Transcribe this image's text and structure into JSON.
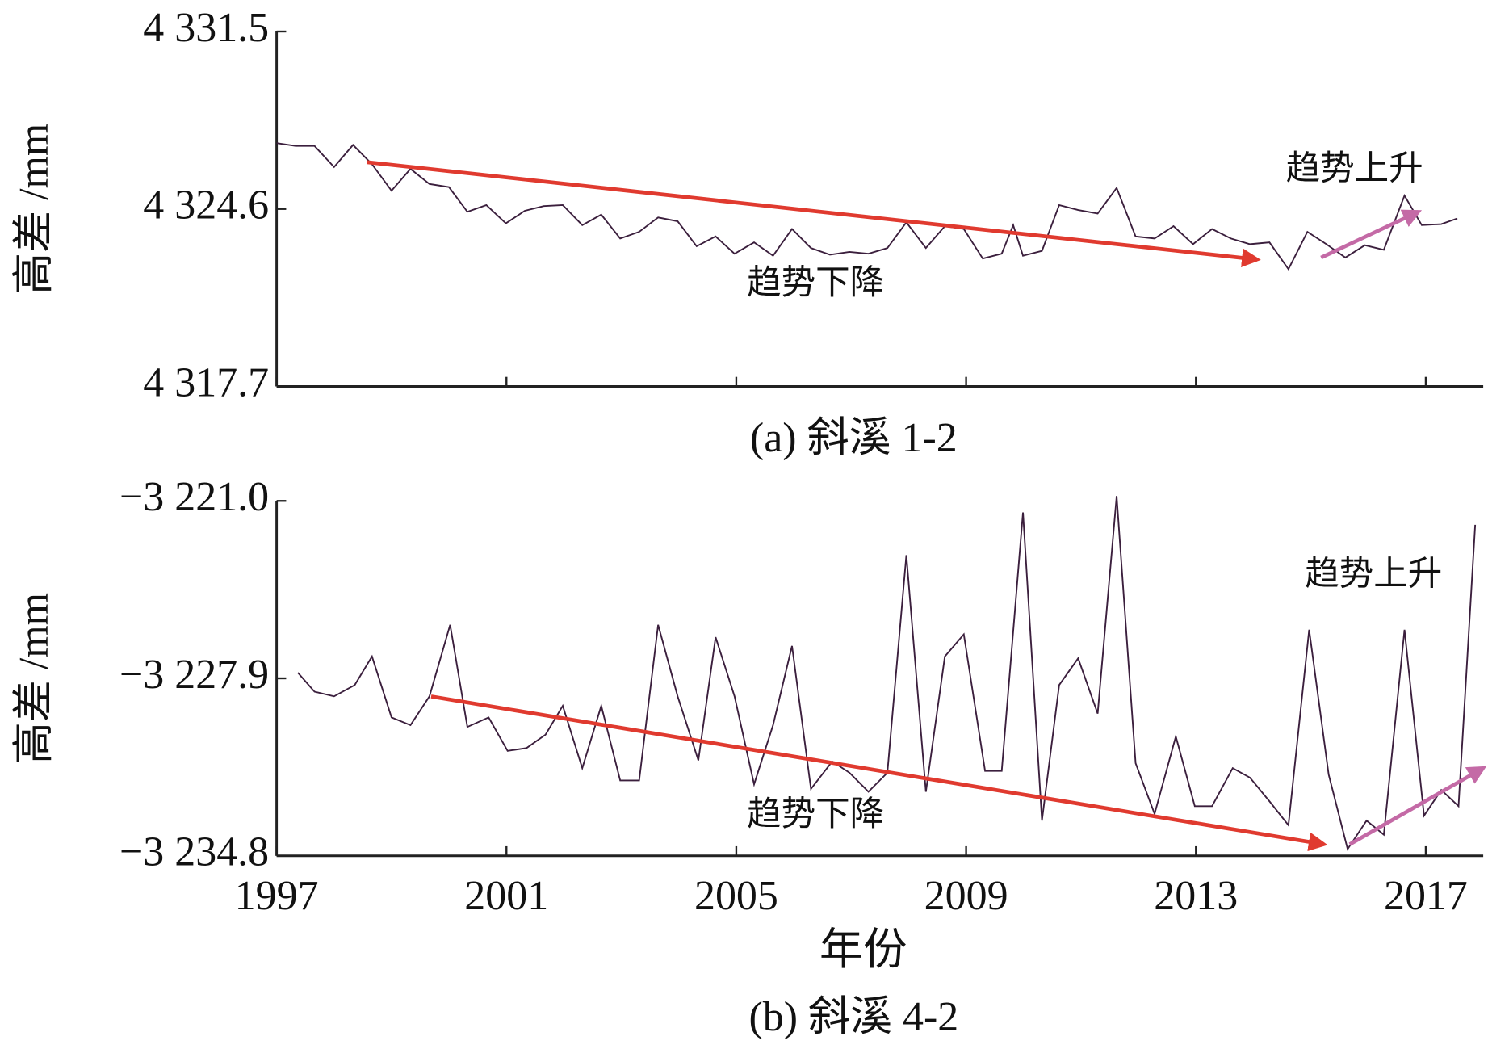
{
  "chart_data": [
    {
      "type": "line",
      "ylabel": "高差 /mm",
      "caption": "(a) 斜溪 1-2",
      "sharex": true,
      "color": "#3b1f3d",
      "annotations": [
        "趋势下降",
        "趋势上升"
      ],
      "xlim": [
        1997,
        2018
      ],
      "ylim": [
        4317.7,
        4331.5
      ],
      "yticks": [
        {
          "value": 4317.7,
          "label": "4 317.7"
        },
        {
          "value": 4324.6,
          "label": "4 324.6"
        },
        {
          "value": 4331.5,
          "label": "4 331.5"
        }
      ],
      "x": [
        1997.0,
        1997.33,
        1997.66,
        1998.0,
        1998.33,
        1998.66,
        1999.0,
        1999.33,
        1999.66,
        2000.0,
        2000.32,
        2000.65,
        2000.99,
        2001.32,
        2001.65,
        2001.98,
        2002.32,
        2002.65,
        2002.98,
        2003.31,
        2003.64,
        2003.98,
        2004.31,
        2004.64,
        2004.97,
        2005.31,
        2005.64,
        2005.97,
        2006.3,
        2006.63,
        2006.97,
        2007.3,
        2007.63,
        2007.96,
        2008.3,
        2008.63,
        2008.96,
        2009.29,
        2009.62,
        2009.82,
        2009.99,
        2010.32,
        2010.62,
        2010.95,
        2011.29,
        2011.62,
        2011.95,
        2012.28,
        2012.61,
        2012.95,
        2013.28,
        2013.61,
        2013.94,
        2014.28,
        2014.61,
        2014.94,
        2015.27,
        2015.6,
        2015.94,
        2016.27,
        2016.63,
        2016.93,
        2017.27,
        2017.55
      ],
      "values": [
        4327.16,
        4327.05,
        4327.05,
        4326.23,
        4327.09,
        4326.34,
        4325.31,
        4326.16,
        4325.57,
        4325.45,
        4324.49,
        4324.75,
        4324.04,
        4324.53,
        4324.71,
        4324.75,
        4323.97,
        4324.38,
        4323.45,
        4323.71,
        4324.27,
        4324.12,
        4323.15,
        4323.53,
        4322.86,
        4323.3,
        4322.78,
        4323.82,
        4323.08,
        4322.82,
        4322.93,
        4322.86,
        4323.08,
        4324.08,
        4323.08,
        4323.93,
        4323.82,
        4322.67,
        4322.86,
        4323.97,
        4322.78,
        4322.97,
        4324.75,
        4324.56,
        4324.42,
        4325.42,
        4323.53,
        4323.45,
        4323.93,
        4323.23,
        4323.82,
        4323.45,
        4323.23,
        4323.3,
        4322.26,
        4323.71,
        4323.23,
        4322.71,
        4323.19,
        4323.01,
        4325.12,
        4323.97,
        4324.01,
        4324.23
      ]
    },
    {
      "type": "line",
      "ylabel": "高差 /mm",
      "caption": "(b) 斜溪 4-2",
      "xlabel": "年份",
      "color": "#3b1f3d",
      "annotations": [
        "趋势下降",
        "趋势上升"
      ],
      "xlim": [
        1997,
        2018
      ],
      "xticks": [
        1997,
        2001,
        2005,
        2009,
        2013,
        2017
      ],
      "ylim": [
        -3234.8,
        -3221.0
      ],
      "yticks": [
        {
          "value": -3234.8,
          "label": "−3 234.8"
        },
        {
          "value": -3227.9,
          "label": "−3 227.9"
        },
        {
          "value": -3221.0,
          "label": "−3 221.0"
        }
      ],
      "x": [
        1997.37,
        1997.66,
        1998.0,
        1998.36,
        1998.66,
        1999.0,
        1999.33,
        1999.66,
        2000.02,
        2000.32,
        2000.69,
        2001.02,
        2001.35,
        2001.68,
        2001.98,
        2002.32,
        2002.65,
        2002.98,
        2003.31,
        2003.64,
        2003.98,
        2004.34,
        2004.64,
        2004.97,
        2005.31,
        2005.64,
        2005.97,
        2006.3,
        2006.67,
        2006.97,
        2007.3,
        2007.63,
        2007.96,
        2008.3,
        2008.63,
        2008.96,
        2009.33,
        2009.62,
        2009.99,
        2010.32,
        2010.62,
        2010.95,
        2011.29,
        2011.62,
        2011.95,
        2012.28,
        2012.65,
        2012.98,
        2013.28,
        2013.64,
        2013.94,
        2014.28,
        2014.61,
        2014.97,
        2015.31,
        2015.64,
        2015.97,
        2016.27,
        2016.63,
        2016.97,
        2017.27,
        2017.57,
        2017.86
      ],
      "values": [
        -3227.68,
        -3228.42,
        -3228.6,
        -3228.16,
        -3227.05,
        -3229.42,
        -3229.72,
        -3228.6,
        -3225.82,
        -3229.79,
        -3229.42,
        -3230.72,
        -3230.61,
        -3230.09,
        -3228.97,
        -3231.39,
        -3228.97,
        -3231.87,
        -3231.87,
        -3225.82,
        -3228.6,
        -3231.09,
        -3226.3,
        -3228.6,
        -3232.02,
        -3229.72,
        -3226.64,
        -3232.2,
        -3231.13,
        -3231.57,
        -3232.31,
        -3231.57,
        -3223.11,
        -3232.31,
        -3227.05,
        -3226.19,
        -3231.5,
        -3231.5,
        -3221.45,
        -3233.43,
        -3228.16,
        -3227.12,
        -3229.27,
        -3220.81,
        -3231.2,
        -3233.17,
        -3230.16,
        -3232.87,
        -3232.87,
        -3231.39,
        -3231.76,
        -3232.68,
        -3233.61,
        -3226.01,
        -3231.64,
        -3234.54,
        -3233.43,
        -3233.98,
        -3226.01,
        -3233.24,
        -3232.24,
        -3232.87,
        -3221.93
      ]
    }
  ]
}
